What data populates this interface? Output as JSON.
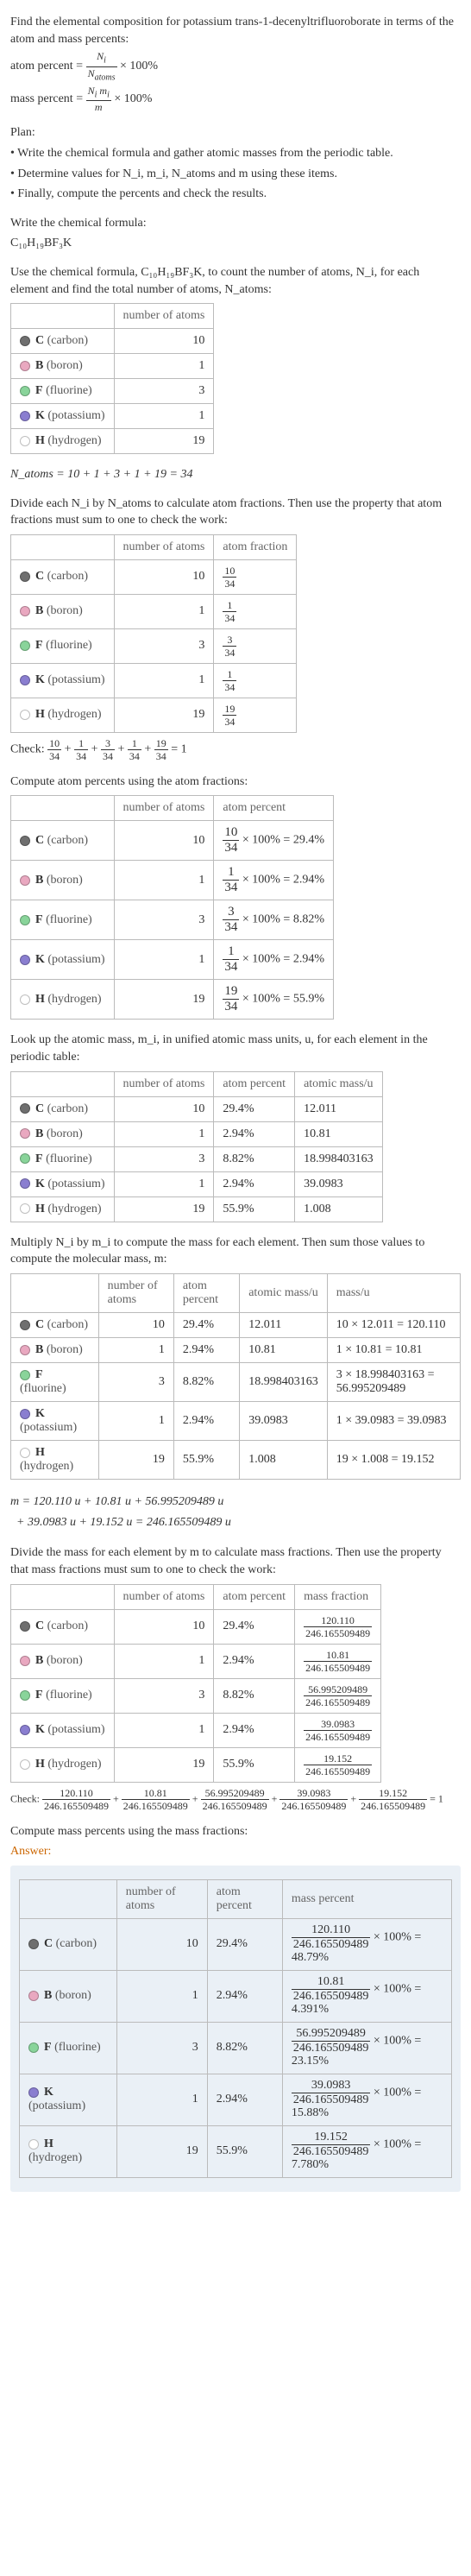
{
  "title": "Find the elemental composition for potassium trans-1-decenyltrifluoroborate in terms of the atom and mass percents:",
  "formula_lines": {
    "atom_percent": "atom percent = ",
    "atom_percent_frac_n": "N_i",
    "atom_percent_frac_d": "N_atoms",
    "atom_percent_tail": " × 100%",
    "mass_percent": "mass percent = ",
    "mass_percent_frac_n": "N_i m_i",
    "mass_percent_frac_d": "m",
    "mass_percent_tail": " × 100%"
  },
  "plan_head": "Plan:",
  "plan_items": [
    "Write the chemical formula and gather atomic masses from the periodic table.",
    "Determine values for N_i, m_i, N_atoms and m using these items.",
    "Finally, compute the percents and check the results."
  ],
  "write_formula_head": "Write the chemical formula:",
  "chem_formula": "C₁₀H₁₉BF₃K",
  "use_formula_text": "Use the chemical formula, C₁₀H₁₉BF₃K, to count the number of atoms, N_i, for each element and find the total number of atoms, N_atoms:",
  "elements": [
    {
      "sym": "C",
      "name": "carbon",
      "color": "#6f6f6f",
      "n": 10,
      "afrac_n": "10",
      "afrac_d": "34",
      "apct": "29.4%",
      "mass": "12.011",
      "mprod": "10 × 12.011 = 120.110",
      "mfrac_n": "120.110",
      "mfrac_d": "246.165509489",
      "mpct": "48.79%"
    },
    {
      "sym": "B",
      "name": "boron",
      "color": "#e9a8c0",
      "n": 1,
      "afrac_n": "1",
      "afrac_d": "34",
      "apct": "2.94%",
      "mass": "10.81",
      "mprod": "1 × 10.81 = 10.81",
      "mfrac_n": "10.81",
      "mfrac_d": "246.165509489",
      "mpct": "4.391%"
    },
    {
      "sym": "F",
      "name": "fluorine",
      "color": "#89d49a",
      "n": 3,
      "afrac_n": "3",
      "afrac_d": "34",
      "apct": "8.82%",
      "mass": "18.998403163",
      "mprod": "3 × 18.998403163 = 56.995209489",
      "mfrac_n": "56.995209489",
      "mfrac_d": "246.165509489",
      "mpct": "23.15%"
    },
    {
      "sym": "K",
      "name": "potassium",
      "color": "#8a7ed0",
      "n": 1,
      "afrac_n": "1",
      "afrac_d": "34",
      "apct": "2.94%",
      "mass": "39.0983",
      "mprod": "1 × 39.0983 = 39.0983",
      "mfrac_n": "39.0983",
      "mfrac_d": "246.165509489",
      "mpct": "15.88%"
    },
    {
      "sym": "H",
      "name": "hydrogen",
      "color": "#ffffff",
      "n": 19,
      "afrac_n": "19",
      "afrac_d": "34",
      "apct": "55.9%",
      "mass": "1.008",
      "mprod": "19 × 1.008 = 19.152",
      "mfrac_n": "19.152",
      "mfrac_d": "246.165509489",
      "mpct": "7.780%"
    }
  ],
  "natoms_line": "N_atoms = 10 + 1 + 3 + 1 + 19 = 34",
  "divide_text": "Divide each N_i by N_atoms to calculate atom fractions. Then use the property that atom fractions must sum to one to check the work:",
  "check1": "Check: 10/34 + 1/34 + 3/34 + 1/34 + 19/34 = 1",
  "compute_apct_text": "Compute atom percents using the atom fractions:",
  "lookup_text": "Look up the atomic mass, m_i, in unified atomic mass units, u, for each element in the periodic table:",
  "multiply_text": "Multiply N_i by m_i to compute the mass for each element. Then sum those values to compute the molecular mass, m:",
  "m_sum": "m = 120.110 u + 10.81 u + 56.995209489 u + 39.0983 u + 19.152 u = 246.165509489 u",
  "divide_mass_text": "Divide the mass for each element by m to calculate mass fractions. Then use the property that mass fractions must sum to one to check the work:",
  "check2": "Check: 120.110/246.165509489 + 10.81/246.165509489 + 56.995209489/246.165509489 + 39.0983/246.165509489 + 19.152/246.165509489 = 1",
  "compute_mpct_text": "Compute mass percents using the mass fractions:",
  "answer_label": "Answer:",
  "headers": {
    "num_atoms": "number of atoms",
    "atom_frac": "atom fraction",
    "atom_pct": "atom percent",
    "atomic_mass": "atomic mass/u",
    "mass_u": "mass/u",
    "mass_frac": "mass fraction",
    "mass_pct": "mass percent"
  }
}
